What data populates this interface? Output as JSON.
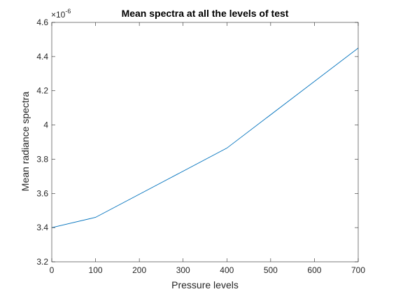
{
  "chart_data": {
    "type": "line",
    "title": "Mean spectra at all the levels of test",
    "xlabel": "Pressure levels",
    "ylabel": "Mean radiance spectra",
    "y_multiplier_label": "×10",
    "y_multiplier_exponent": "-6",
    "xlim": [
      0,
      700
    ],
    "ylim": [
      3.2,
      4.6
    ],
    "x_ticks": [
      0,
      100,
      200,
      300,
      400,
      500,
      600,
      700
    ],
    "x_tick_labels": [
      "0",
      "100",
      "200",
      "300",
      "400",
      "500",
      "600",
      "700"
    ],
    "y_ticks": [
      3.2,
      3.4,
      3.6,
      3.8,
      4.0,
      4.2,
      4.4,
      4.6
    ],
    "y_tick_labels": [
      "3.2",
      "3.4",
      "3.6",
      "3.8",
      "4",
      "4.2",
      "4.4",
      "4.6"
    ],
    "grid": false,
    "series": [
      {
        "color": "#0072bd",
        "x": [
          0,
          100,
          400,
          700
        ],
        "y": [
          3.4,
          3.46,
          3.865,
          4.45
        ]
      }
    ]
  }
}
